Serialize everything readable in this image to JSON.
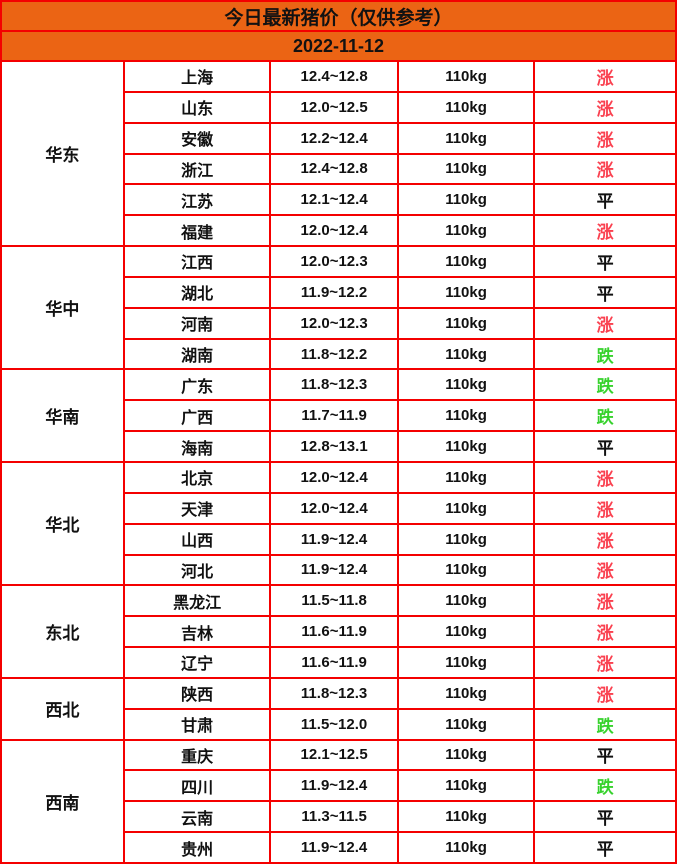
{
  "colors": {
    "border": "#f40000",
    "header_bg": "#eb6414",
    "up": "#fa4150",
    "down": "#37d22d",
    "flat": "#111111"
  },
  "chart_data": {
    "type": "table",
    "title": "今日最新猪价（仅供参考）",
    "date": "2022-11-12",
    "legend": {
      "up": "涨",
      "flat": "平",
      "down": "跌"
    },
    "regions": [
      {
        "name": "华东",
        "rows": [
          {
            "province": "上海",
            "price": "12.4~12.8",
            "weight": "110kg",
            "trend": "涨",
            "direction": "up"
          },
          {
            "province": "山东",
            "price": "12.0~12.5",
            "weight": "110kg",
            "trend": "涨",
            "direction": "up"
          },
          {
            "province": "安徽",
            "price": "12.2~12.4",
            "weight": "110kg",
            "trend": "涨",
            "direction": "up"
          },
          {
            "province": "浙江",
            "price": "12.4~12.8",
            "weight": "110kg",
            "trend": "涨",
            "direction": "up"
          },
          {
            "province": "江苏",
            "price": "12.1~12.4",
            "weight": "110kg",
            "trend": "平",
            "direction": "flat"
          },
          {
            "province": "福建",
            "price": "12.0~12.4",
            "weight": "110kg",
            "trend": "涨",
            "direction": "up"
          }
        ]
      },
      {
        "name": "华中",
        "rows": [
          {
            "province": "江西",
            "price": "12.0~12.3",
            "weight": "110kg",
            "trend": "平",
            "direction": "flat"
          },
          {
            "province": "湖北",
            "price": "11.9~12.2",
            "weight": "110kg",
            "trend": "平",
            "direction": "flat"
          },
          {
            "province": "河南",
            "price": "12.0~12.3",
            "weight": "110kg",
            "trend": "涨",
            "direction": "up"
          },
          {
            "province": "湖南",
            "price": "11.8~12.2",
            "weight": "110kg",
            "trend": "跌",
            "direction": "down"
          }
        ]
      },
      {
        "name": "华南",
        "rows": [
          {
            "province": "广东",
            "price": "11.8~12.3",
            "weight": "110kg",
            "trend": "跌",
            "direction": "down"
          },
          {
            "province": "广西",
            "price": "11.7~11.9",
            "weight": "110kg",
            "trend": "跌",
            "direction": "down"
          },
          {
            "province": "海南",
            "price": "12.8~13.1",
            "weight": "110kg",
            "trend": "平",
            "direction": "flat"
          }
        ]
      },
      {
        "name": "华北",
        "rows": [
          {
            "province": "北京",
            "price": "12.0~12.4",
            "weight": "110kg",
            "trend": "涨",
            "direction": "up"
          },
          {
            "province": "天津",
            "price": "12.0~12.4",
            "weight": "110kg",
            "trend": "涨",
            "direction": "up"
          },
          {
            "province": "山西",
            "price": "11.9~12.4",
            "weight": "110kg",
            "trend": "涨",
            "direction": "up"
          },
          {
            "province": "河北",
            "price": "11.9~12.4",
            "weight": "110kg",
            "trend": "涨",
            "direction": "up"
          }
        ]
      },
      {
        "name": "东北",
        "rows": [
          {
            "province": "黑龙江",
            "price": "11.5~11.8",
            "weight": "110kg",
            "trend": "涨",
            "direction": "up"
          },
          {
            "province": "吉林",
            "price": "11.6~11.9",
            "weight": "110kg",
            "trend": "涨",
            "direction": "up"
          },
          {
            "province": "辽宁",
            "price": "11.6~11.9",
            "weight": "110kg",
            "trend": "涨",
            "direction": "up"
          }
        ]
      },
      {
        "name": "西北",
        "rows": [
          {
            "province": "陕西",
            "price": "11.8~12.3",
            "weight": "110kg",
            "trend": "涨",
            "direction": "up"
          },
          {
            "province": "甘肃",
            "price": "11.5~12.0",
            "weight": "110kg",
            "trend": "跌",
            "direction": "down"
          }
        ]
      },
      {
        "name": "西南",
        "rows": [
          {
            "province": "重庆",
            "price": "12.1~12.5",
            "weight": "110kg",
            "trend": "平",
            "direction": "flat"
          },
          {
            "province": "四川",
            "price": "11.9~12.4",
            "weight": "110kg",
            "trend": "跌",
            "direction": "down"
          },
          {
            "province": "云南",
            "price": "11.3~11.5",
            "weight": "110kg",
            "trend": "平",
            "direction": "flat"
          },
          {
            "province": "贵州",
            "price": "11.9~12.4",
            "weight": "110kg",
            "trend": "平",
            "direction": "flat"
          }
        ]
      }
    ]
  }
}
